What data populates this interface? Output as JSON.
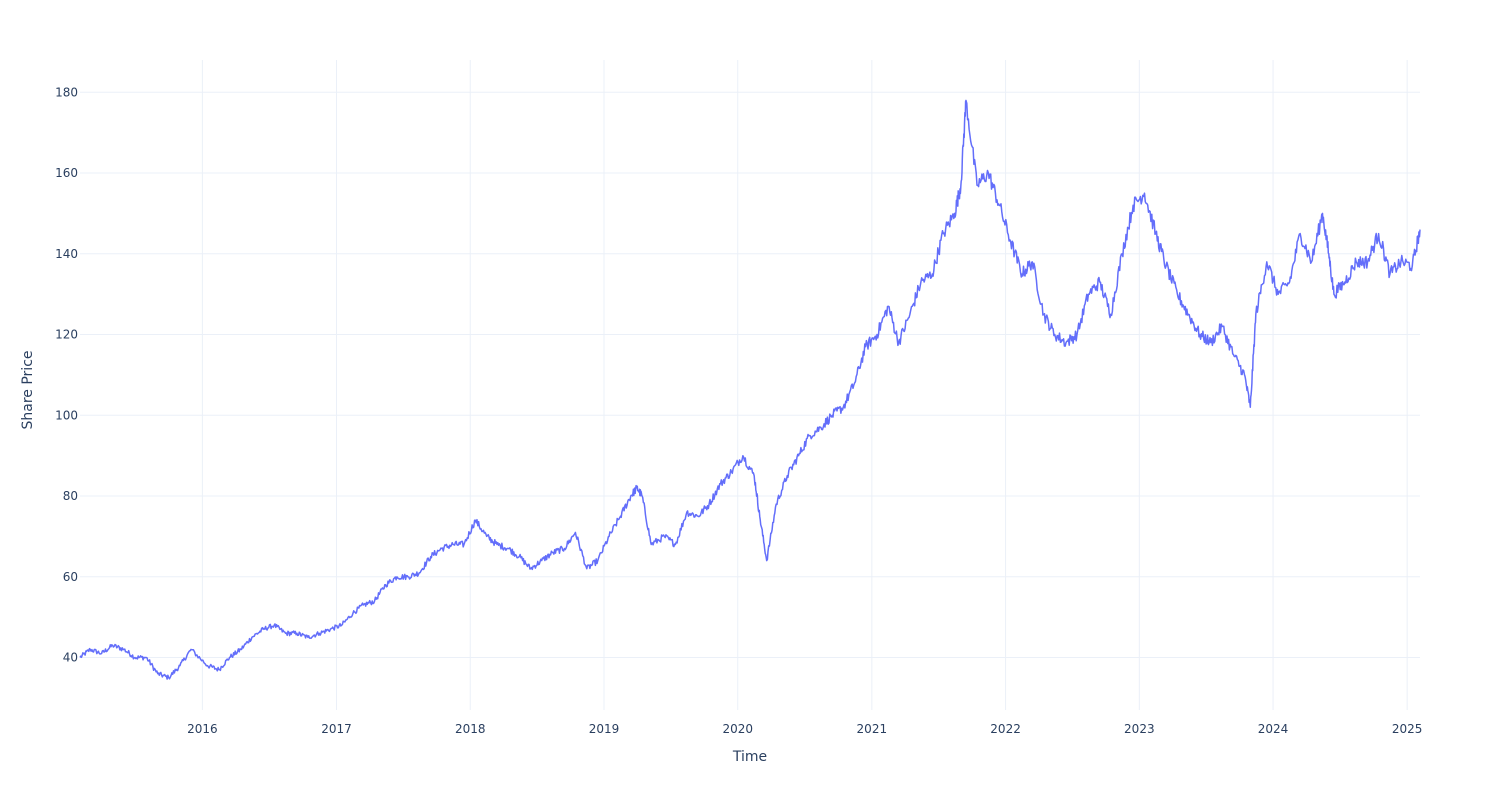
{
  "chart_data": {
    "type": "line",
    "title": "",
    "xlabel": "Time",
    "ylabel": "Share Price",
    "xlim": [
      "2015-02-01",
      "2025-02-05"
    ],
    "ylim": [
      27,
      188
    ],
    "x_ticks": [
      "2016",
      "2017",
      "2018",
      "2019",
      "2020",
      "2021",
      "2022",
      "2023",
      "2024",
      "2025"
    ],
    "y_ticks": [
      40,
      60,
      80,
      100,
      120,
      140,
      160,
      180
    ],
    "grid": true,
    "legend": "none",
    "line_color": "#636efa",
    "series": [
      {
        "x": [
          "2015-02-01",
          "2015-03-01",
          "2015-04-01",
          "2015-05-01",
          "2015-06-01",
          "2015-07-01",
          "2015-08-01",
          "2015-09-01",
          "2015-10-01",
          "2015-11-01",
          "2015-12-01",
          "2016-01-15",
          "2016-02-15",
          "2016-03-15",
          "2016-04-15",
          "2016-05-15",
          "2016-06-15",
          "2016-07-15",
          "2016-08-15",
          "2016-09-15",
          "2016-10-15",
          "2016-11-15",
          "2016-12-15",
          "2017-01-15",
          "2017-02-15",
          "2017-03-15",
          "2017-04-15",
          "2017-05-15",
          "2017-06-15",
          "2017-07-15",
          "2017-08-15",
          "2017-09-15",
          "2017-10-15",
          "2017-11-15",
          "2017-12-15",
          "2018-01-15",
          "2018-02-15",
          "2018-03-15",
          "2018-04-15",
          "2018-05-15",
          "2018-06-15",
          "2018-07-15",
          "2018-08-15",
          "2018-09-15",
          "2018-10-15",
          "2018-11-15",
          "2018-12-15",
          "2019-01-15",
          "2019-02-15",
          "2019-03-15",
          "2019-04-01",
          "2019-04-15",
          "2019-05-10",
          "2019-06-15",
          "2019-07-15",
          "2019-08-15",
          "2019-09-15",
          "2019-10-15",
          "2019-11-15",
          "2019-12-15",
          "2020-01-15",
          "2020-02-15",
          "2020-03-01",
          "2020-03-20",
          "2020-04-15",
          "2020-05-15",
          "2020-06-15",
          "2020-07-15",
          "2020-08-15",
          "2020-09-15",
          "2020-10-15",
          "2020-11-15",
          "2020-12-15",
          "2021-01-15",
          "2021-02-15",
          "2021-03-15",
          "2021-04-15",
          "2021-05-15",
          "2021-06-15",
          "2021-07-15",
          "2021-08-15",
          "2021-09-01",
          "2021-09-15",
          "2021-10-15",
          "2021-11-15",
          "2021-12-15",
          "2022-01-15",
          "2022-02-15",
          "2022-03-15",
          "2022-04-15",
          "2022-05-15",
          "2022-06-15",
          "2022-07-15",
          "2022-08-15",
          "2022-09-15",
          "2022-10-15",
          "2022-11-15",
          "2022-12-15",
          "2023-01-15",
          "2023-02-15",
          "2023-03-15",
          "2023-04-15",
          "2023-05-15",
          "2023-06-15",
          "2023-07-15",
          "2023-08-15",
          "2023-09-15",
          "2023-10-15",
          "2023-10-31",
          "2023-11-15",
          "2023-12-15",
          "2024-01-15",
          "2024-02-15",
          "2024-03-15",
          "2024-04-15",
          "2024-05-15",
          "2024-06-01",
          "2024-06-15",
          "2024-07-15",
          "2024-08-15",
          "2024-09-15",
          "2024-10-15",
          "2024-11-15",
          "2024-12-15",
          "2025-01-15",
          "2025-02-05"
        ],
        "values": [
          40,
          42,
          41,
          43,
          42,
          40,
          40,
          36,
          35,
          38,
          42,
          38,
          37,
          40,
          42,
          45,
          47,
          48,
          46,
          46,
          45,
          46,
          47,
          48,
          51,
          53,
          54,
          58,
          60,
          60,
          61,
          65,
          67,
          68,
          68,
          74,
          70,
          68,
          67,
          65,
          62,
          64,
          66,
          67,
          71,
          62,
          64,
          70,
          75,
          80,
          82,
          80,
          68,
          70,
          68,
          76,
          75,
          78,
          83,
          86,
          90,
          85,
          75,
          64,
          78,
          85,
          90,
          95,
          97,
          100,
          102,
          108,
          117,
          120,
          127,
          118,
          125,
          133,
          135,
          145,
          150,
          157,
          178,
          157,
          160,
          152,
          143,
          135,
          138,
          125,
          120,
          118,
          120,
          130,
          133,
          125,
          140,
          152,
          155,
          145,
          137,
          130,
          125,
          120,
          118,
          122,
          115,
          110,
          102,
          125,
          138,
          130,
          133,
          145,
          138,
          150,
          140,
          130,
          133,
          138,
          138,
          145,
          135,
          138,
          137,
          146
        ]
      }
    ]
  }
}
